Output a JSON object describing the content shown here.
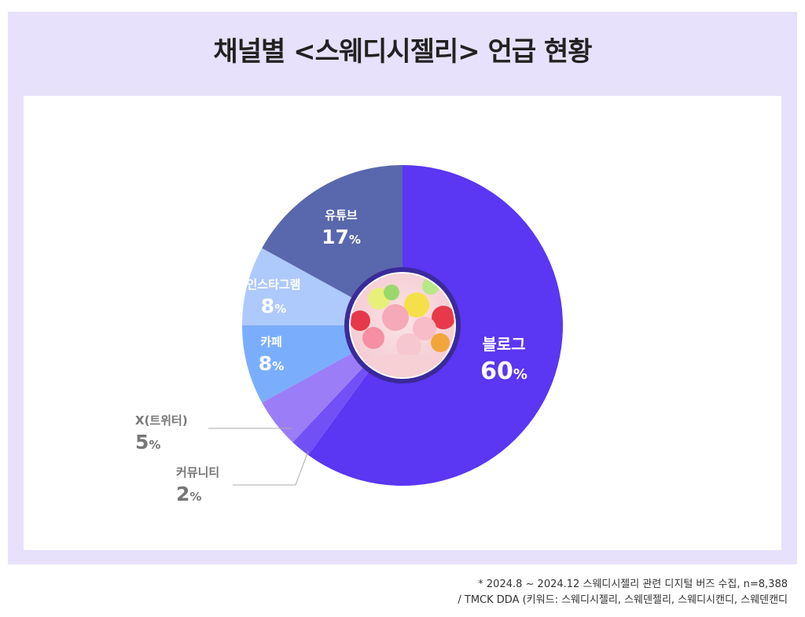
{
  "title": "채널별 <스웨디시젤리> 언급 현황",
  "colors": {
    "frame": "#e8e1fb",
    "label_dark": "#777777"
  },
  "center_image": {
    "icon": "candy-jelly-image"
  },
  "chart_data": {
    "type": "pie",
    "title": "채널별 <스웨디시젤리> 언급 현황",
    "unit": "%",
    "slices": [
      {
        "label": "블로그",
        "value": 60,
        "color": "#5b36f3",
        "label_color": "#ffffff"
      },
      {
        "label": "커뮤니티",
        "value": 2,
        "color": "#7150f6",
        "label_color": "#777777"
      },
      {
        "label": "X(트위터)",
        "value": 5,
        "color": "#9b7df8",
        "label_color": "#777777"
      },
      {
        "label": "카페",
        "value": 8,
        "color": "#7aaefc",
        "label_color": "#ffffff"
      },
      {
        "label": "인스타그램",
        "value": 8,
        "color": "#aec9fb",
        "label_color": "#ffffff"
      },
      {
        "label": "유튜브",
        "value": 17,
        "color": "#5967ac",
        "label_color": "#ffffff"
      }
    ]
  },
  "footnote": {
    "line1": "* 2024.8 ~ 2024.12 스웨디시젤리 관련 디지털 버즈 수집, n=8,388",
    "line2": "/ TMCK DDA (키워드: 스웨디시젤리, 스웨덴젤리, 스웨디시캔디, 스웨덴캔디"
  }
}
